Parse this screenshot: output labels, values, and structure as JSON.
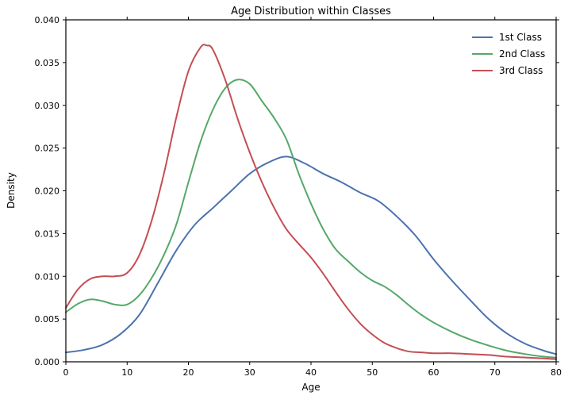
{
  "chart_data": {
    "type": "line",
    "subtype": "kde",
    "title": "Age Distribution within Classes",
    "xlabel": "Age",
    "ylabel": "Density",
    "xlim": [
      0,
      80
    ],
    "ylim": [
      0,
      0.04
    ],
    "xticks": [
      0,
      10,
      20,
      30,
      40,
      50,
      60,
      70,
      80
    ],
    "yticks": [
      0.0,
      0.005,
      0.01,
      0.015,
      0.02,
      0.025,
      0.03,
      0.035,
      0.04
    ],
    "grid": false,
    "legend_position": "upper right",
    "background_color": "#ffffff",
    "axes_color": "#000000",
    "series": [
      {
        "name": "1st Class",
        "color": "#4C72B0",
        "points": [
          [
            0,
            0.0011
          ],
          [
            3,
            0.0014
          ],
          [
            6,
            0.002
          ],
          [
            9,
            0.0033
          ],
          [
            12,
            0.0055
          ],
          [
            15,
            0.0092
          ],
          [
            18,
            0.013
          ],
          [
            21,
            0.016
          ],
          [
            24,
            0.018
          ],
          [
            27,
            0.02
          ],
          [
            30,
            0.022
          ],
          [
            33,
            0.0233
          ],
          [
            36,
            0.024
          ],
          [
            39,
            0.0232
          ],
          [
            42,
            0.022
          ],
          [
            45,
            0.021
          ],
          [
            48,
            0.0198
          ],
          [
            51,
            0.0188
          ],
          [
            54,
            0.017
          ],
          [
            57,
            0.0148
          ],
          [
            60,
            0.012
          ],
          [
            63,
            0.0095
          ],
          [
            66,
            0.0072
          ],
          [
            69,
            0.005
          ],
          [
            72,
            0.0033
          ],
          [
            75,
            0.0021
          ],
          [
            78,
            0.0013
          ],
          [
            80,
            0.0009
          ]
        ]
      },
      {
        "name": "2nd Class",
        "color": "#55A868",
        "points": [
          [
            0,
            0.0058
          ],
          [
            2,
            0.0068
          ],
          [
            4,
            0.0073
          ],
          [
            6,
            0.0071
          ],
          [
            8,
            0.0067
          ],
          [
            10,
            0.0067
          ],
          [
            12,
            0.0078
          ],
          [
            14,
            0.0098
          ],
          [
            16,
            0.0125
          ],
          [
            18,
            0.016
          ],
          [
            20,
            0.021
          ],
          [
            22,
            0.0258
          ],
          [
            24,
            0.0295
          ],
          [
            26,
            0.032
          ],
          [
            28,
            0.033
          ],
          [
            30,
            0.0325
          ],
          [
            32,
            0.0305
          ],
          [
            34,
            0.0285
          ],
          [
            36,
            0.026
          ],
          [
            38,
            0.022
          ],
          [
            40,
            0.0185
          ],
          [
            42,
            0.0155
          ],
          [
            44,
            0.0132
          ],
          [
            46,
            0.0118
          ],
          [
            48,
            0.0105
          ],
          [
            50,
            0.0095
          ],
          [
            52,
            0.0088
          ],
          [
            54,
            0.0078
          ],
          [
            56,
            0.0066
          ],
          [
            58,
            0.0055
          ],
          [
            60,
            0.0046
          ],
          [
            63,
            0.0035
          ],
          [
            66,
            0.0026
          ],
          [
            69,
            0.0019
          ],
          [
            72,
            0.0013
          ],
          [
            75,
            0.0009
          ],
          [
            78,
            0.0006
          ],
          [
            80,
            0.0005
          ]
        ]
      },
      {
        "name": "3rd Class",
        "color": "#C44E52",
        "points": [
          [
            0,
            0.0063
          ],
          [
            2,
            0.0085
          ],
          [
            4,
            0.0097
          ],
          [
            6,
            0.01
          ],
          [
            8,
            0.01
          ],
          [
            10,
            0.0104
          ],
          [
            12,
            0.0125
          ],
          [
            14,
            0.0165
          ],
          [
            16,
            0.022
          ],
          [
            18,
            0.0285
          ],
          [
            20,
            0.034
          ],
          [
            22,
            0.0368
          ],
          [
            23,
            0.037
          ],
          [
            24,
            0.0365
          ],
          [
            26,
            0.033
          ],
          [
            28,
            0.0285
          ],
          [
            30,
            0.0245
          ],
          [
            32,
            0.021
          ],
          [
            34,
            0.018
          ],
          [
            36,
            0.0155
          ],
          [
            38,
            0.0138
          ],
          [
            40,
            0.0122
          ],
          [
            42,
            0.0103
          ],
          [
            44,
            0.0082
          ],
          [
            46,
            0.0062
          ],
          [
            48,
            0.0045
          ],
          [
            50,
            0.0032
          ],
          [
            52,
            0.0022
          ],
          [
            54,
            0.0016
          ],
          [
            56,
            0.0012
          ],
          [
            58,
            0.0011
          ],
          [
            60,
            0.001
          ],
          [
            63,
            0.001
          ],
          [
            66,
            0.0009
          ],
          [
            69,
            0.0008
          ],
          [
            72,
            0.0006
          ],
          [
            75,
            0.0005
          ],
          [
            78,
            0.0004
          ],
          [
            80,
            0.0003
          ]
        ]
      }
    ]
  }
}
